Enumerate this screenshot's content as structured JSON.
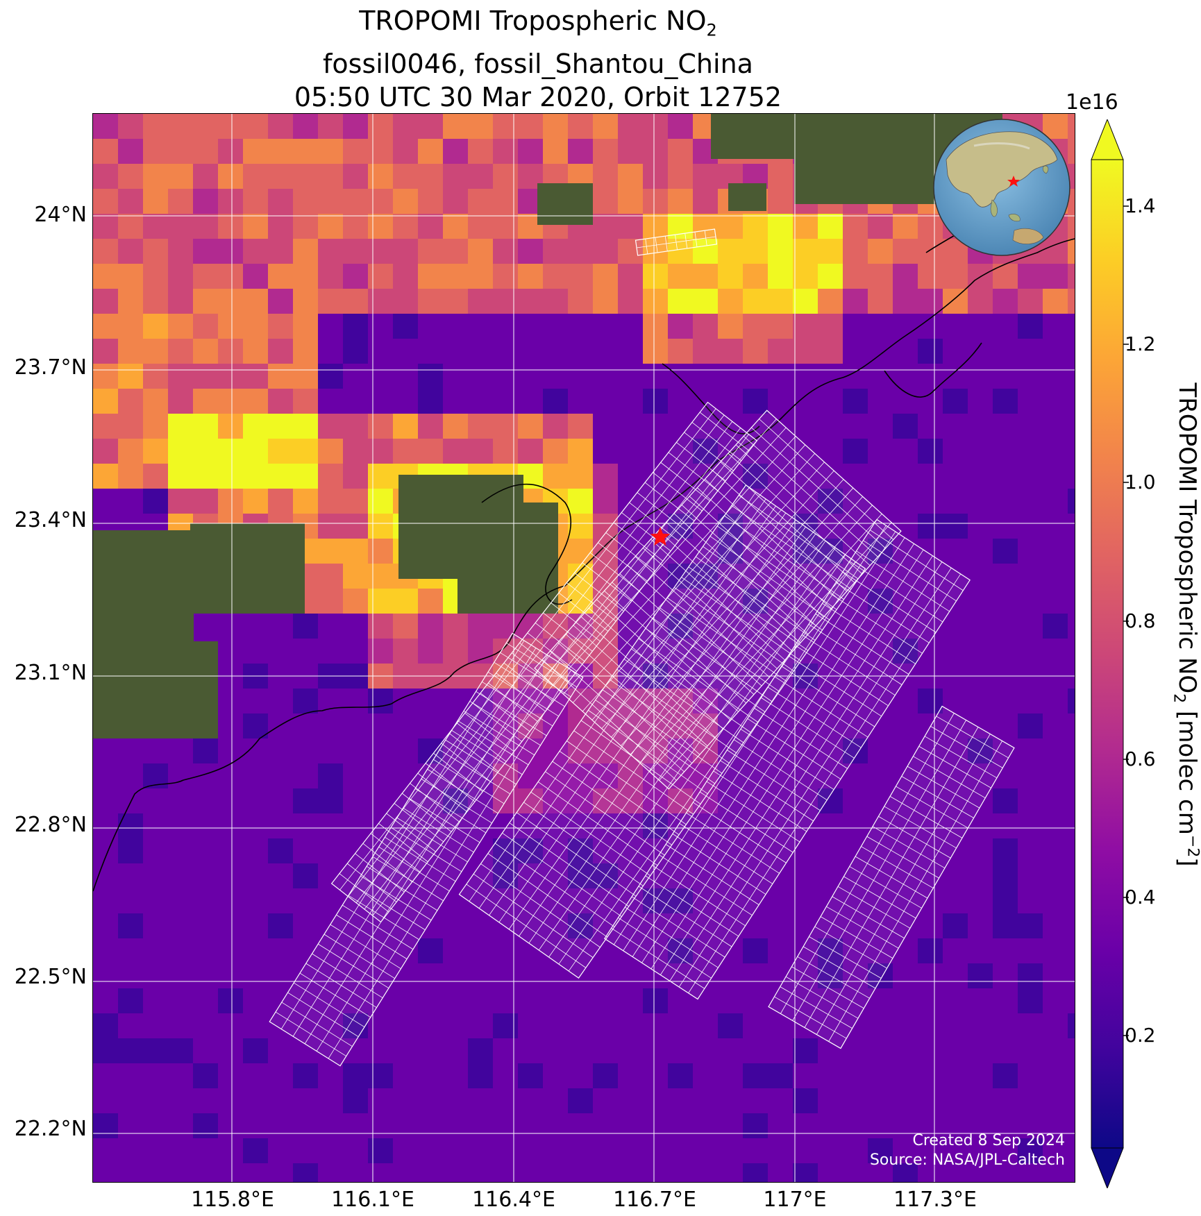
{
  "title": {
    "line1_prefix": "TROPOMI Tropospheric NO",
    "line1_sub": "2",
    "line2": "fossil0046, fossil_Shantou_China",
    "line3": "05:50 UTC 30 Mar 2020, Orbit 12752"
  },
  "map": {
    "lat_labels": [
      "24°N",
      "23.7°N",
      "23.4°N",
      "23.1°N",
      "22.8°N",
      "22.5°N",
      "22.2°N"
    ],
    "lon_labels": [
      "115.8°E",
      "116.1°E",
      "116.4°E",
      "116.7°E",
      "117°E",
      "117.3°E"
    ],
    "site_marker": "red-star",
    "site_marker_color": "#ff1010",
    "gridline_color": "#ffffff",
    "coastline_color": "#000000",
    "swath_outline_color": "#ffffff"
  },
  "credit": {
    "line1": "Created 8 Sep 2024",
    "line2": "Source: NASA/JPL-Caltech"
  },
  "colorbar": {
    "exponent_label": "1e16",
    "tick_labels": [
      "1.4",
      "1.2",
      "1.0",
      "0.8",
      "0.6",
      "0.4",
      "0.2"
    ],
    "title_prefix": "TROPOMI Tropospheric NO",
    "title_sub": "2",
    "title_unit_prefix": " [molec cm",
    "title_unit_sup": "−2",
    "title_unit_suffix": "]",
    "colormap": "plasma",
    "extend": "both"
  },
  "inset_globe": {
    "marker": "red-star",
    "ocean_color": "#6fa6cf",
    "land_color": "#c9c28e"
  }
}
